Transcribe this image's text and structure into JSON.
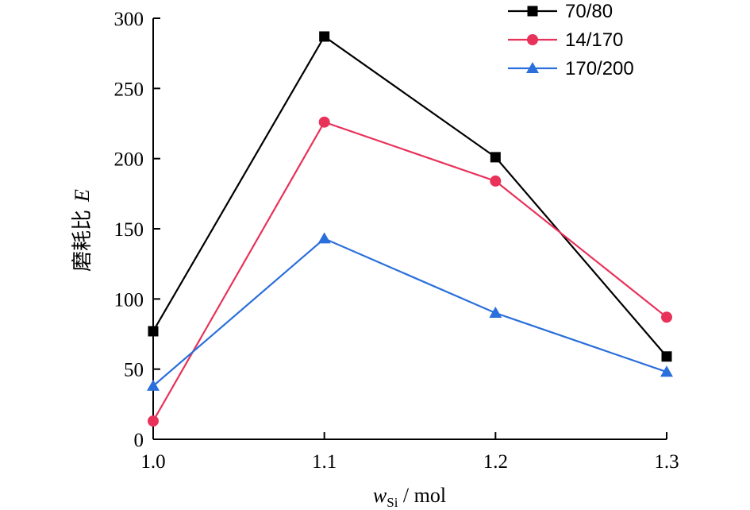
{
  "chart_data": {
    "type": "line",
    "x": [
      1.0,
      1.1,
      1.2,
      1.3
    ],
    "x_tick_labels": [
      "1.0",
      "1.1",
      "1.2",
      "1.3"
    ],
    "xlim": [
      1.0,
      1.3
    ],
    "ylim": [
      0,
      300
    ],
    "y_ticks": [
      0,
      50,
      100,
      150,
      200,
      250,
      300
    ],
    "y_tick_labels": [
      "0",
      "50",
      "100",
      "150",
      "200",
      "250",
      "300"
    ],
    "ylabel": "磨耗比 E",
    "ylabel_main": "磨耗比",
    "ylabel_var": "E",
    "xlabel": "wSi / mol",
    "xlabel_var": "w",
    "xlabel_sub": "Si",
    "xlabel_unit": " / mol",
    "grid": false,
    "legend_position": "top-right",
    "series": [
      {
        "name": "70/80",
        "values": [
          77,
          287,
          201,
          59
        ],
        "color": "#000000",
        "marker": "square"
      },
      {
        "name": "14/170",
        "values": [
          13,
          226,
          184,
          87
        ],
        "color": "#e8325a",
        "marker": "circle"
      },
      {
        "name": "170/200",
        "values": [
          38,
          143,
          90,
          48
        ],
        "color": "#2a6fdb",
        "marker": "triangle"
      }
    ]
  }
}
